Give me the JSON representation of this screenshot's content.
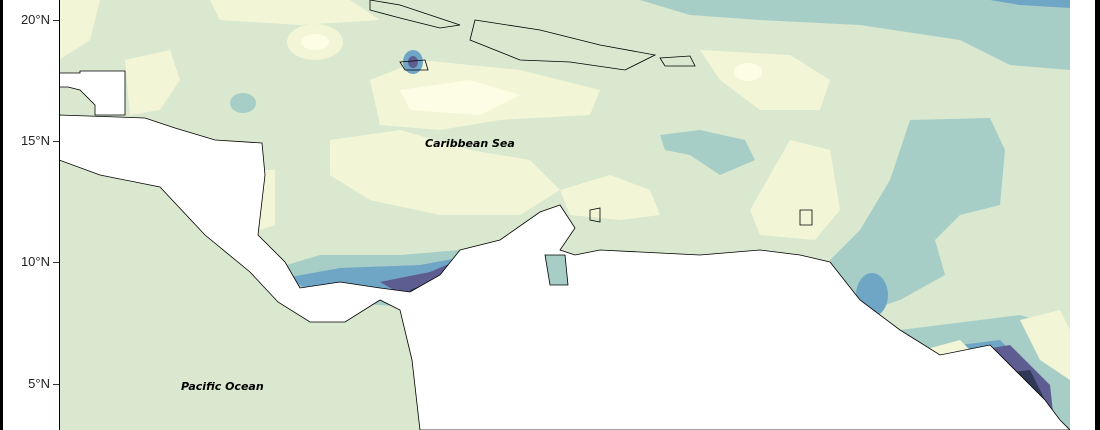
{
  "map": {
    "latitude_ticks": [
      "20°N",
      "15°N",
      "10°N",
      "5°N"
    ],
    "labels": {
      "caribbean": "Caribbean Sea",
      "pacific": "Pacific Ocean"
    },
    "palette": [
      "#fdfde6",
      "#f2f6d6",
      "#d9e8cf",
      "#a7cdc7",
      "#6fa6c6",
      "#5a80ae",
      "#5e5d91",
      "#2f3858"
    ]
  }
}
